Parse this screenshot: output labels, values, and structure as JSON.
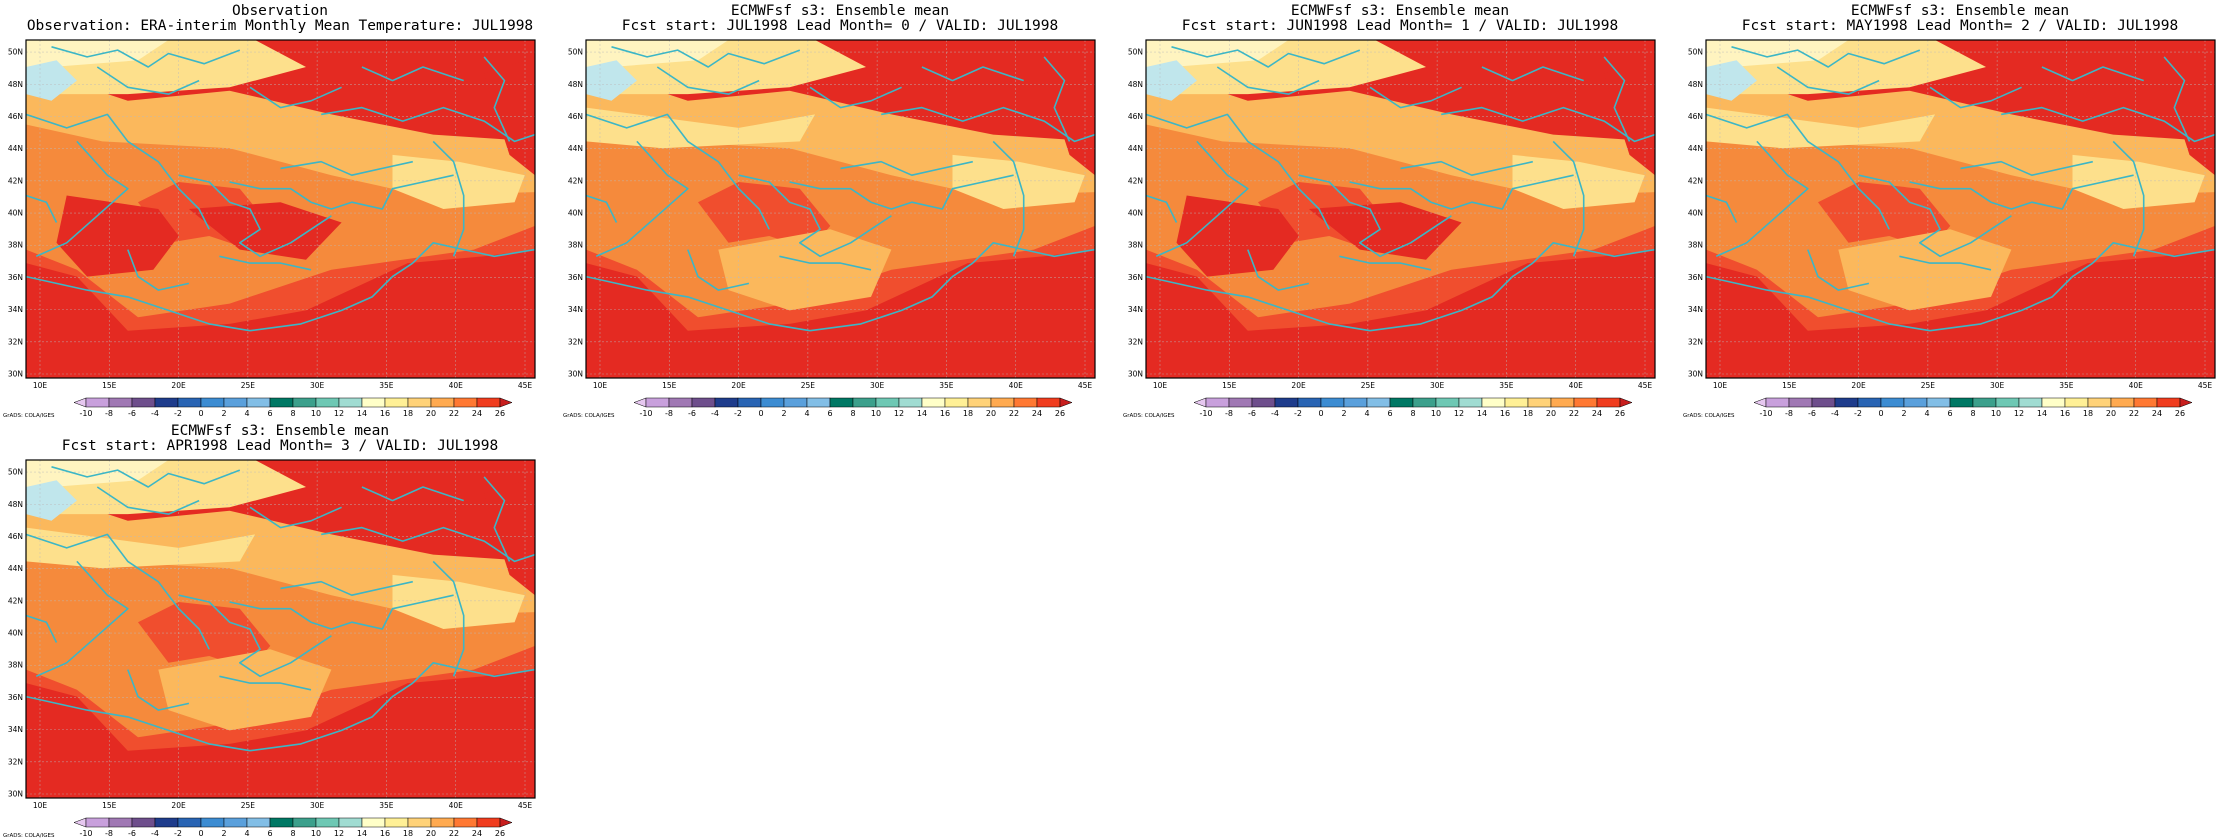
{
  "panels": [
    {
      "title_line1": "Observation",
      "title_line2": "Observation: ERA-interim Monthly Mean Temperature: JUL1998",
      "warmth": 2
    },
    {
      "title_line1": "ECMWFsf s3: Ensemble mean",
      "title_line2": "Fcst start: JUL1998  Lead Month= 0 / VALID: JUL1998",
      "warmth": 0
    },
    {
      "title_line1": "ECMWFsf s3: Ensemble mean",
      "title_line2": "Fcst start: JUN1998  Lead Month= 1 / VALID: JUL1998",
      "warmth": 1
    },
    {
      "title_line1": "ECMWFsf s3: Ensemble mean",
      "title_line2": "Fcst start: MAY1998  Lead Month= 2 / VALID: JUL1998",
      "warmth": 0
    },
    {
      "title_line1": "ECMWFsf s3: Ensemble mean",
      "title_line2": "Fcst start: APR1998  Lead Month= 3 / VALID: JUL1998",
      "warmth": -1
    }
  ],
  "lat_labels": [
    "30N",
    "32N",
    "34N",
    "36N",
    "38N",
    "40N",
    "42N",
    "44N",
    "46N",
    "48N",
    "50N"
  ],
  "lon_labels": [
    "10E",
    "15E",
    "20E",
    "25E",
    "30E",
    "35E",
    "40E",
    "45E"
  ],
  "colorbar": {
    "labels": [
      "-10",
      "-8",
      "-6",
      "-4",
      "-2",
      "0",
      "2",
      "4",
      "6",
      "8",
      "10",
      "12",
      "14",
      "16",
      "18",
      "20",
      "22",
      "24",
      "26"
    ],
    "colors": [
      "#e6c8f0",
      "#c8a0dc",
      "#a078b4",
      "#6e4e8c",
      "#1e3c8c",
      "#2864b4",
      "#3c8cd2",
      "#5aa0dc",
      "#82bee6",
      "#007864",
      "#3ca08c",
      "#6ec8b4",
      "#a0dcd2",
      "#ffffc8",
      "#fff096",
      "#ffd278",
      "#ffaa50",
      "#ff7832",
      "#f03c1e",
      "#c81e1e"
    ],
    "grads_label": "GrADS: COLA/IGES"
  },
  "map_colors": {
    "ocean_red": "#e42a22",
    "mid_red": "#f04e2e",
    "orange": "#f58a3c",
    "light_orange": "#fbb85c",
    "yellow": "#fde08c",
    "pale_yellow": "#fff4c0",
    "light_blue": "#c0e6ec",
    "coast_line": "#3cb6c6",
    "grid_line": "#bbbbbb"
  }
}
